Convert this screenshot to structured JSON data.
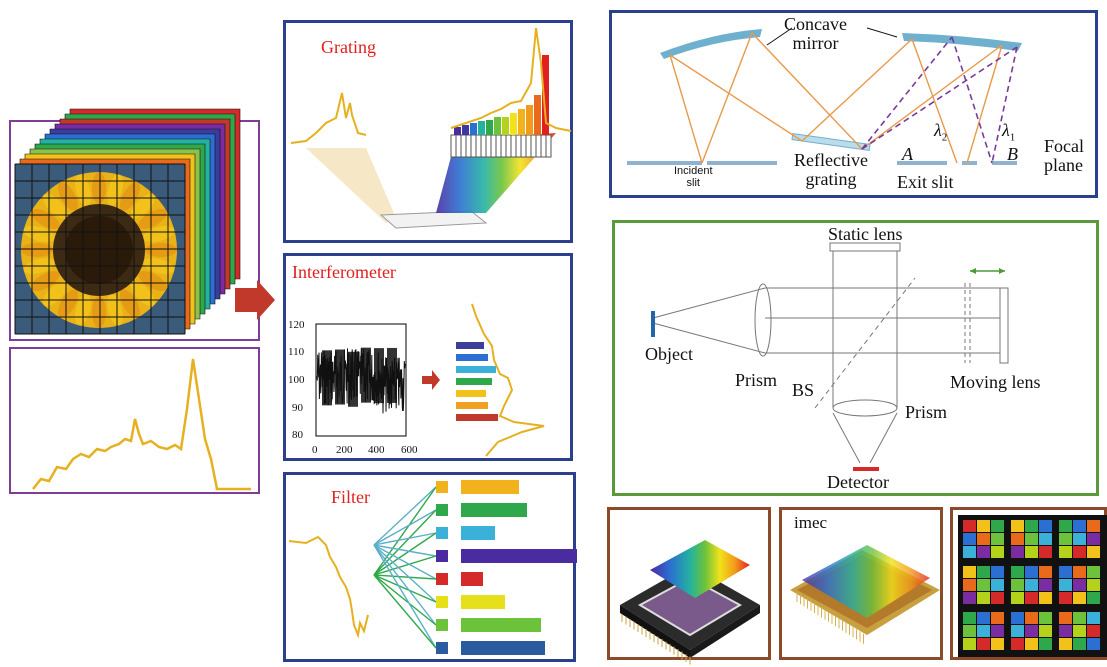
{
  "colors": {
    "cube_border": "#7e3d98",
    "spectrum_border": "#7e3d98",
    "grating_border": "#2b3f8f",
    "interf_border": "#2b3f8f",
    "filter_border": "#2b3f8f",
    "topright_border": "#2b3f8f",
    "green_border": "#5a9a3a",
    "brown_border": "#8b4a2a",
    "title_red": "#e0201f",
    "spectrum_line": "#e6b020",
    "arrow_red": "#c0392b"
  },
  "panels": {
    "grating": {
      "title": "Grating"
    },
    "interferometer": {
      "title": "Interferometer",
      "yticks": [
        "120",
        "110",
        "100",
        "90",
        "80"
      ],
      "xticks": [
        "0",
        "200",
        "400",
        "600"
      ]
    },
    "filter": {
      "title": "Filter"
    }
  },
  "monochromator": {
    "concave_mirror": "Concave\nmirror",
    "incident_slit": "Incident\nslit",
    "reflective_grating": "Reflective\ngrating",
    "exit_slit": "Exit slit",
    "label_a": "A",
    "label_b": "B",
    "lambda2": "λ",
    "lambda2_sub": "2",
    "lambda1": "λ",
    "lambda1_sub": "1",
    "focal_plane": "Focal\nplane"
  },
  "interferometer_setup": {
    "static_lens": "Static lens",
    "object": "Object",
    "prism_left": "Prism",
    "bs": "BS",
    "prism_bottom": "Prism",
    "moving_lens": "Moving lens",
    "detector": "Detector"
  },
  "sensors": {
    "imec_label": "imec"
  }
}
